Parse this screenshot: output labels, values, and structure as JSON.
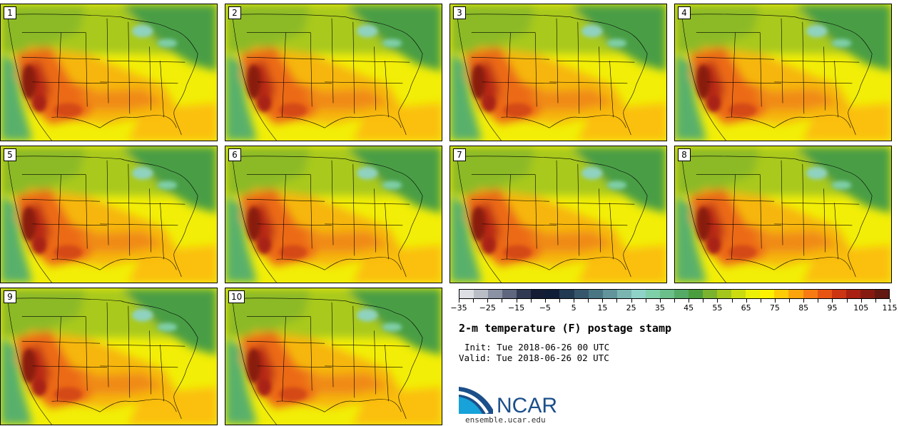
{
  "members": [
    "1",
    "2",
    "3",
    "4",
    "5",
    "6",
    "7",
    "8",
    "9",
    "10"
  ],
  "colorbar": {
    "colors": [
      "#dcdee3",
      "#b9bdc6",
      "#8a92a3",
      "#5e677d",
      "#303a52",
      "#141d33",
      "#0f1e36",
      "#223a52",
      "#36566b",
      "#4a7582",
      "#62949b",
      "#7ab5b2",
      "#8fd2c8",
      "#7fcfa8",
      "#6bbf8a",
      "#55aa65",
      "#4b9e3d",
      "#7bb22e",
      "#a4c61d",
      "#cbdb0f",
      "#ecef06",
      "#fff200",
      "#fecc06",
      "#fba40c",
      "#f77b12",
      "#e85513",
      "#cc3412",
      "#a82112",
      "#861a10",
      "#631911"
    ],
    "tick_labels": [
      "−35",
      "−25",
      "−15",
      "−5",
      "5",
      "15",
      "25",
      "35",
      "45",
      "55",
      "65",
      "75",
      "85",
      "95",
      "105",
      "115"
    ]
  },
  "title": "2-m temperature (F) postage stamp",
  "init": "Init: Tue 2018-06-26 00 UTC",
  "valid": "Valid: Tue 2018-06-26 02 UTC",
  "logo": {
    "wordmark": "NCAR",
    "url": "ensemble.ucar.edu",
    "colors": {
      "blue": "#1b4f8a",
      "cyan": "#17a2d9"
    }
  },
  "map_colors": {
    "ocean": "#59b06a",
    "cool": "#4a9e45",
    "mild": "#a7c81f",
    "warm": "#e8ee08",
    "hot": "#fbb010",
    "hotter": "#ea5d14",
    "hottest": "#a21f12",
    "lakes": "#8fd2c0"
  }
}
